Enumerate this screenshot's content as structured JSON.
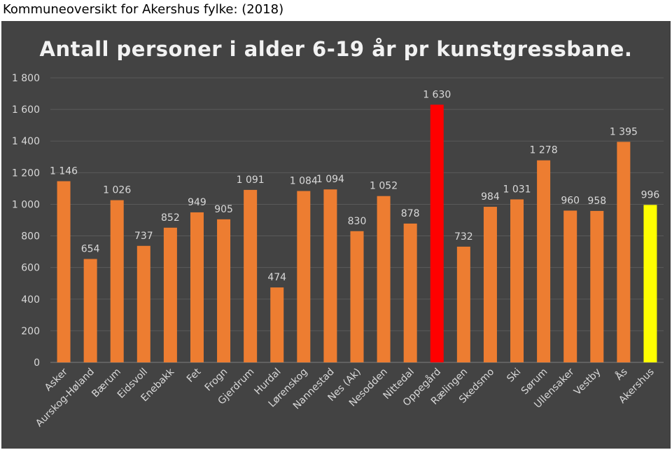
{
  "caption": "Kommuneoversikt for Akershus fylke: (2018)",
  "chart_data": {
    "type": "bar",
    "title": "Antall personer i alder 6-19 år pr kunstgressbane.",
    "xlabel": "",
    "ylabel": "",
    "ylim": [
      0,
      1800
    ],
    "yticks": [
      0,
      200,
      400,
      600,
      800,
      1000,
      1200,
      1400,
      1600,
      1800
    ],
    "ytick_labels": [
      "0",
      "200",
      "400",
      "600",
      "800",
      "1 000",
      "1 200",
      "1 400",
      "1 600",
      "1 800"
    ],
    "grid": true,
    "legend": "none",
    "categories": [
      "Asker",
      "Aurskog-Høland",
      "Bærum",
      "Eidsvoll",
      "Enebakk",
      "Fet",
      "Frogn",
      "Gjerdrum",
      "Hurdal",
      "Lørenskog",
      "Nannestad",
      "Nes (Ak)",
      "Nesodden",
      "Nittedal",
      "Oppegård",
      "Rælingen",
      "Skedsmo",
      "Ski",
      "Sørum",
      "Ullensaker",
      "Vestby",
      "Ås",
      "Akershus"
    ],
    "values": [
      1146,
      654,
      1026,
      737,
      852,
      949,
      905,
      1091,
      474,
      1084,
      1094,
      830,
      1052,
      878,
      1630,
      732,
      984,
      1031,
      1278,
      960,
      958,
      1395,
      996
    ],
    "value_labels": [
      "1 146",
      "654",
      "1 026",
      "737",
      "852",
      "949",
      "905",
      "1 091",
      "474",
      "1 084",
      "1 094",
      "830",
      "1 052",
      "878",
      "1 630",
      "732",
      "984",
      "1 031",
      "1 278",
      "960",
      "958",
      "1 395",
      "996"
    ],
    "colors": {
      "default": "#ed7d31",
      "highlight_max": "#ff0000",
      "highlight_total": "#ffff00",
      "background": "#434343",
      "gridline": "#5a5a5a",
      "text": "#d9d9d9"
    },
    "bar_colors": [
      "#ed7d31",
      "#ed7d31",
      "#ed7d31",
      "#ed7d31",
      "#ed7d31",
      "#ed7d31",
      "#ed7d31",
      "#ed7d31",
      "#ed7d31",
      "#ed7d31",
      "#ed7d31",
      "#ed7d31",
      "#ed7d31",
      "#ed7d31",
      "#ff0000",
      "#ed7d31",
      "#ed7d31",
      "#ed7d31",
      "#ed7d31",
      "#ed7d31",
      "#ed7d31",
      "#ed7d31",
      "#ffff00"
    ]
  }
}
